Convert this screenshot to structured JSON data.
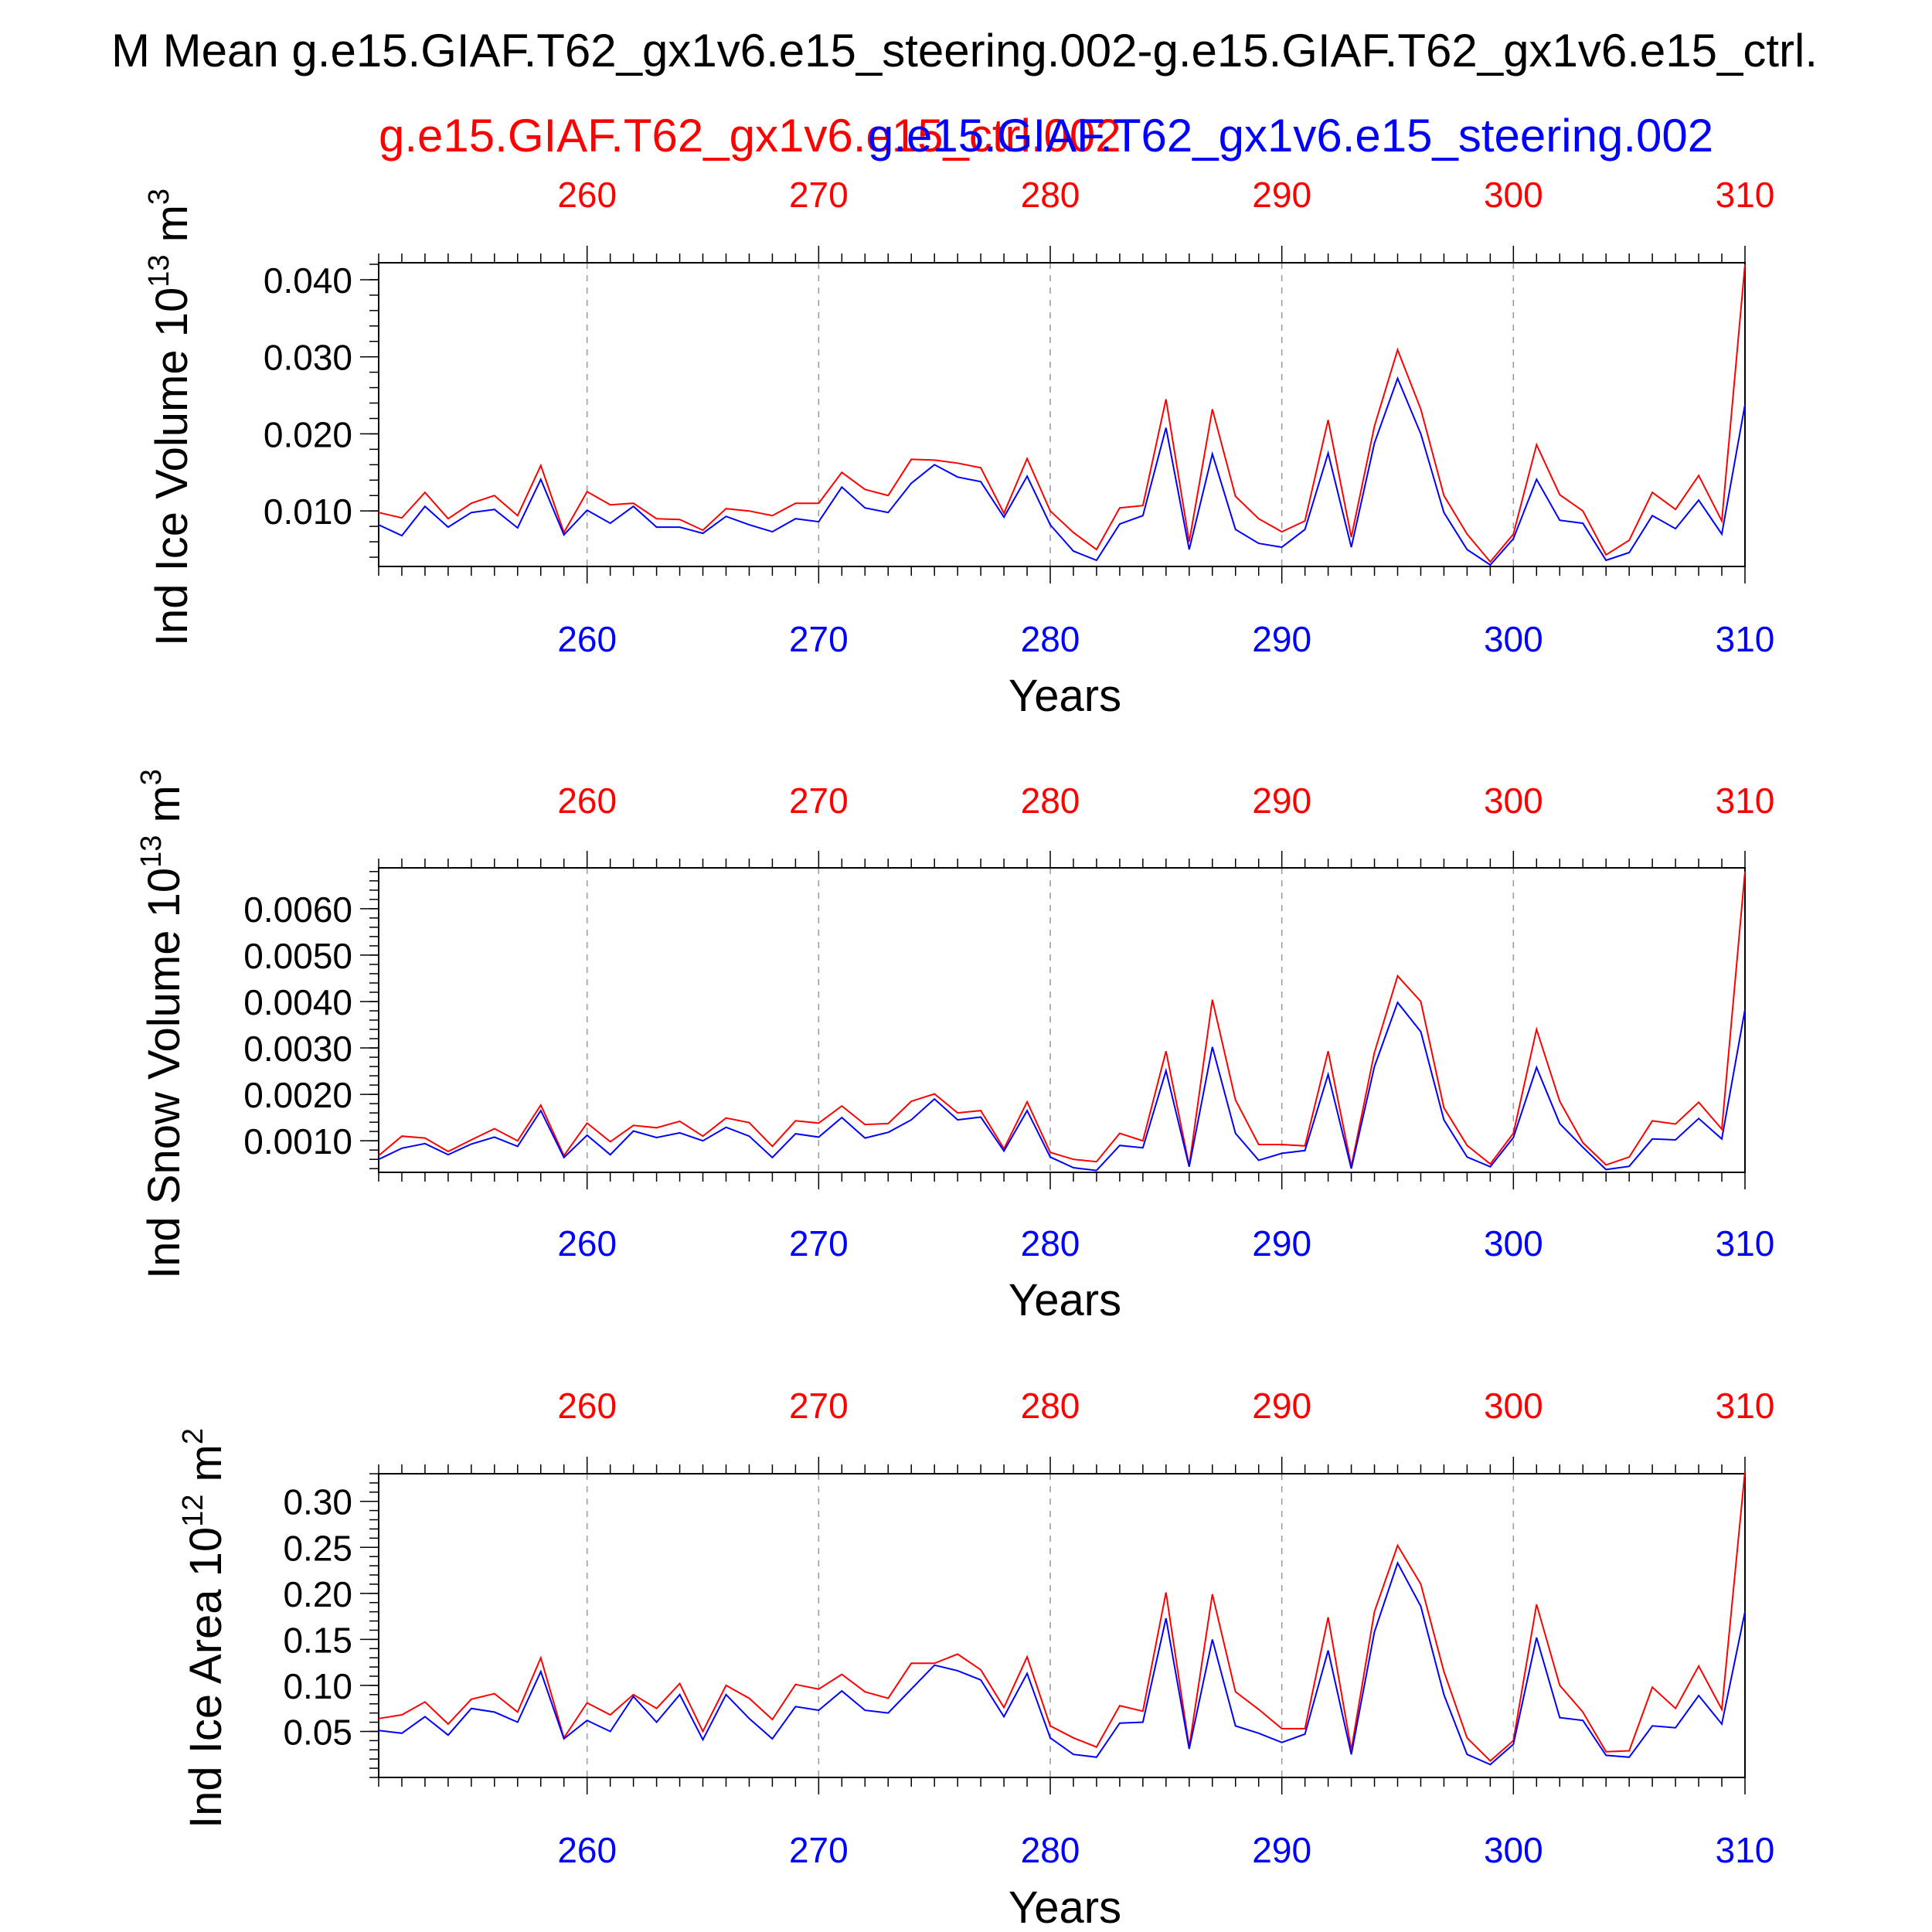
{
  "figure": {
    "title": "M Mean g.e15.GIAF.T62_gx1v6.e15_steering.002-g.e15.GIAF.T62_gx1v6.e15_ctrl.",
    "legend_ctrl": "g.e15.GIAF.T62_gx1v6.e15_ctrl.002",
    "legend_steer": "g.e15.GIAF.T62_gx1v6.e15_steering.002",
    "colors": {
      "ctrl": "#ff0000",
      "steering": "#0000ff",
      "axis": "#000000",
      "grid": "#999999"
    }
  },
  "chart_data": [
    {
      "type": "line",
      "ylabel_main": "Ind Ice Volume 10",
      "ylabel_exp": "13",
      "ylabel_unit": " m",
      "ylabel_unit_exp": "3",
      "xlabel": "Years",
      "xlim": [
        251,
        310
      ],
      "ylim": [
        0.0028,
        0.0422
      ],
      "x_ticks": [
        260,
        270,
        280,
        290,
        300,
        310
      ],
      "y_ticks": [
        0.01,
        0.02,
        0.03,
        0.04
      ],
      "y_tick_labels": [
        "0.010",
        "0.020",
        "0.030",
        "0.040"
      ],
      "y_minor": 0.002,
      "x": [
        251,
        252,
        253,
        254,
        255,
        256,
        257,
        258,
        259,
        260,
        261,
        262,
        263,
        264,
        265,
        266,
        267,
        268,
        269,
        270,
        271,
        272,
        273,
        274,
        275,
        276,
        277,
        278,
        279,
        280,
        281,
        282,
        283,
        284,
        285,
        286,
        287,
        288,
        289,
        290,
        291,
        292,
        293,
        294,
        295,
        296,
        297,
        298,
        299,
        300,
        301,
        302,
        303,
        304,
        305,
        306,
        307,
        308,
        309,
        310
      ],
      "series": [
        {
          "name": "g.e15.GIAF.T62_gx1v6.e15_ctrl.002",
          "color": "ctrl",
          "values": [
            0.0098,
            0.0091,
            0.0124,
            0.009,
            0.011,
            0.012,
            0.0094,
            0.0159,
            0.0072,
            0.0125,
            0.0108,
            0.011,
            0.009,
            0.0089,
            0.0075,
            0.0103,
            0.01,
            0.0094,
            0.011,
            0.011,
            0.015,
            0.0128,
            0.012,
            0.0167,
            0.0166,
            0.0162,
            0.0156,
            0.0097,
            0.0168,
            0.01,
            0.0072,
            0.005,
            0.0104,
            0.0107,
            0.0245,
            0.006,
            0.0232,
            0.0119,
            0.009,
            0.0073,
            0.0087,
            0.0218,
            0.0066,
            0.021,
            0.0309,
            0.0232,
            0.012,
            0.007,
            0.0034,
            0.007,
            0.0186,
            0.0121,
            0.01,
            0.0043,
            0.0062,
            0.0124,
            0.0102,
            0.0146,
            0.0087,
            0.042
          ]
        },
        {
          "name": "g.e15.GIAF.T62_gx1v6.e15_steering.002",
          "color": "steering",
          "values": [
            0.0082,
            0.0068,
            0.0106,
            0.0079,
            0.0098,
            0.0102,
            0.0078,
            0.0141,
            0.0069,
            0.0101,
            0.0084,
            0.0106,
            0.0079,
            0.0079,
            0.0071,
            0.0093,
            0.0082,
            0.0073,
            0.009,
            0.0086,
            0.0131,
            0.0104,
            0.0098,
            0.0136,
            0.016,
            0.0144,
            0.0138,
            0.0092,
            0.0145,
            0.0082,
            0.0048,
            0.0036,
            0.0083,
            0.0094,
            0.0208,
            0.005,
            0.0174,
            0.0076,
            0.0058,
            0.0053,
            0.0076,
            0.0175,
            0.0053,
            0.0188,
            0.0272,
            0.02,
            0.0098,
            0.005,
            0.003,
            0.0064,
            0.0141,
            0.0088,
            0.0084,
            0.0036,
            0.0046,
            0.0094,
            0.0077,
            0.0114,
            0.007,
            0.0238
          ]
        }
      ]
    },
    {
      "type": "line",
      "ylabel_main": "Ind Snow Volume 10",
      "ylabel_exp": "13",
      "ylabel_unit": " m",
      "ylabel_unit_exp": "3",
      "xlabel": "Years",
      "xlim": [
        251,
        310
      ],
      "ylim": [
        0.00032,
        0.00688
      ],
      "x_ticks": [
        260,
        270,
        280,
        290,
        300,
        310
      ],
      "y_ticks": [
        0.001,
        0.002,
        0.003,
        0.004,
        0.005,
        0.006
      ],
      "y_tick_labels": [
        "0.0010",
        "0.0020",
        "0.0030",
        "0.0040",
        "0.0050",
        "0.0060"
      ],
      "y_minor": 0.0002,
      "x": [
        251,
        252,
        253,
        254,
        255,
        256,
        257,
        258,
        259,
        260,
        261,
        262,
        263,
        264,
        265,
        266,
        267,
        268,
        269,
        270,
        271,
        272,
        273,
        274,
        275,
        276,
        277,
        278,
        279,
        280,
        281,
        282,
        283,
        284,
        285,
        286,
        287,
        288,
        289,
        290,
        291,
        292,
        293,
        294,
        295,
        296,
        297,
        298,
        299,
        300,
        301,
        302,
        303,
        304,
        305,
        306,
        307,
        308,
        309,
        310
      ],
      "series": [
        {
          "name": "g.e15.GIAF.T62_gx1v6.e15_ctrl.002",
          "color": "ctrl",
          "values": [
            0.00068,
            0.0011,
            0.00106,
            0.00077,
            0.00102,
            0.00126,
            0.001,
            0.00177,
            0.00068,
            0.00138,
            0.00098,
            0.00133,
            0.00128,
            0.00142,
            0.0011,
            0.00149,
            0.00139,
            0.00088,
            0.00143,
            0.00138,
            0.00175,
            0.00135,
            0.00137,
            0.00185,
            0.00201,
            0.0016,
            0.00165,
            0.00083,
            0.00184,
            0.00075,
            0.0006,
            0.00055,
            0.00116,
            0.001,
            0.00293,
            0.00046,
            0.00404,
            0.00188,
            0.00092,
            0.00092,
            0.00089,
            0.00293,
            0.00045,
            0.0029,
            0.00455,
            0.004,
            0.00171,
            0.0009,
            0.0005,
            0.00116,
            0.0034,
            0.00185,
            0.00096,
            0.00048,
            0.00065,
            0.00143,
            0.00136,
            0.00183,
            0.00125,
            0.0068
          ]
        },
        {
          "name": "g.e15.GIAF.T62_gx1v6.e15_steering.002",
          "color": "steering",
          "values": [
            0.0006,
            0.00084,
            0.00094,
            0.0007,
            0.00093,
            0.00108,
            0.00088,
            0.00165,
            0.00064,
            0.00112,
            0.0007,
            0.00121,
            0.00107,
            0.00117,
            0.001,
            0.00129,
            0.0011,
            0.00064,
            0.00115,
            0.00108,
            0.0015,
            0.00106,
            0.00118,
            0.00145,
            0.0019,
            0.00145,
            0.00151,
            0.00078,
            0.00165,
            0.00065,
            0.00042,
            0.00036,
            0.0009,
            0.00085,
            0.00251,
            0.00044,
            0.00302,
            0.00116,
            0.00058,
            0.00073,
            0.00079,
            0.00243,
            0.0004,
            0.0026,
            0.00398,
            0.00335,
            0.00145,
            0.00065,
            0.00044,
            0.00107,
            0.00258,
            0.00137,
            0.00086,
            0.00038,
            0.00045,
            0.00104,
            0.00102,
            0.00148,
            0.00104,
            0.00383
          ]
        }
      ]
    },
    {
      "type": "line",
      "ylabel_main": "Ind Ice Area 10",
      "ylabel_exp": "12",
      "ylabel_unit": " m",
      "ylabel_unit_exp": "2",
      "xlabel": "Years",
      "xlim": [
        251,
        310
      ],
      "ylim": [
        0.0,
        0.33
      ],
      "x_ticks": [
        260,
        270,
        280,
        290,
        300,
        310
      ],
      "y_ticks": [
        0.05,
        0.1,
        0.15,
        0.2,
        0.25,
        0.3
      ],
      "y_tick_labels": [
        "0.05",
        "0.10",
        "0.15",
        "0.20",
        "0.25",
        "0.30"
      ],
      "y_minor": 0.01,
      "x": [
        251,
        252,
        253,
        254,
        255,
        256,
        257,
        258,
        259,
        260,
        261,
        262,
        263,
        264,
        265,
        266,
        267,
        268,
        269,
        270,
        271,
        272,
        273,
        274,
        275,
        276,
        277,
        278,
        279,
        280,
        281,
        282,
        283,
        284,
        285,
        286,
        287,
        288,
        289,
        290,
        291,
        292,
        293,
        294,
        295,
        296,
        297,
        298,
        299,
        300,
        301,
        302,
        303,
        304,
        305,
        306,
        307,
        308,
        309,
        310
      ],
      "series": [
        {
          "name": "g.e15.GIAF.T62_gx1v6.e15_ctrl.002",
          "color": "ctrl",
          "values": [
            0.064,
            0.068,
            0.082,
            0.058,
            0.085,
            0.091,
            0.071,
            0.13,
            0.043,
            0.081,
            0.068,
            0.09,
            0.075,
            0.102,
            0.05,
            0.1,
            0.086,
            0.063,
            0.101,
            0.096,
            0.112,
            0.093,
            0.086,
            0.124,
            0.124,
            0.134,
            0.117,
            0.076,
            0.131,
            0.056,
            0.043,
            0.033,
            0.078,
            0.072,
            0.201,
            0.033,
            0.199,
            0.093,
            0.074,
            0.053,
            0.053,
            0.174,
            0.03,
            0.18,
            0.252,
            0.21,
            0.115,
            0.043,
            0.018,
            0.04,
            0.188,
            0.1,
            0.071,
            0.028,
            0.029,
            0.098,
            0.075,
            0.121,
            0.074,
            0.333
          ]
        },
        {
          "name": "g.e15.GIAF.T62_gx1v6.e15_steering.002",
          "color": "steering",
          "values": [
            0.051,
            0.048,
            0.066,
            0.046,
            0.075,
            0.071,
            0.06,
            0.115,
            0.042,
            0.062,
            0.05,
            0.088,
            0.06,
            0.09,
            0.041,
            0.09,
            0.064,
            0.042,
            0.077,
            0.073,
            0.094,
            0.073,
            0.07,
            0.096,
            0.122,
            0.116,
            0.106,
            0.066,
            0.113,
            0.043,
            0.025,
            0.022,
            0.059,
            0.06,
            0.173,
            0.031,
            0.15,
            0.056,
            0.048,
            0.038,
            0.047,
            0.138,
            0.025,
            0.158,
            0.233,
            0.186,
            0.09,
            0.025,
            0.014,
            0.036,
            0.152,
            0.065,
            0.062,
            0.024,
            0.022,
            0.056,
            0.054,
            0.089,
            0.058,
            0.18
          ]
        }
      ]
    }
  ]
}
